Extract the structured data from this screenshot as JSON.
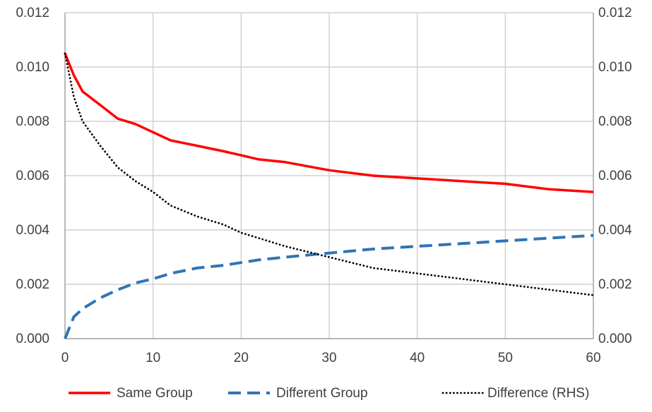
{
  "chart_data": {
    "type": "line",
    "x_ticks": [
      "0",
      "10",
      "20",
      "30",
      "40",
      "50",
      "60"
    ],
    "y_left_ticks": [
      "0.000",
      "0.002",
      "0.004",
      "0.006",
      "0.008",
      "0.010",
      "0.012"
    ],
    "y_right_ticks": [
      "0.000",
      "0.002",
      "0.004",
      "0.006",
      "0.008",
      "0.010",
      "0.012"
    ],
    "xlim": [
      0,
      60
    ],
    "ylim_left": [
      0,
      0.012
    ],
    "ylim_right": [
      0,
      0.012
    ],
    "grid": true,
    "legend_position": "bottom",
    "series": [
      {
        "name": "Same Group",
        "axis": "left",
        "style": "solid",
        "color": "#ff0000",
        "x": [
          0,
          1,
          2,
          4,
          6,
          8,
          10,
          12,
          15,
          18,
          20,
          22,
          25,
          30,
          35,
          40,
          45,
          50,
          55,
          60
        ],
        "y": [
          0.0105,
          0.0097,
          0.0091,
          0.0086,
          0.0081,
          0.0079,
          0.0076,
          0.0073,
          0.0071,
          0.0069,
          0.00675,
          0.0066,
          0.0065,
          0.0062,
          0.006,
          0.0059,
          0.0058,
          0.0057,
          0.0055,
          0.0054
        ]
      },
      {
        "name": "Different Group",
        "axis": "left",
        "style": "dashed",
        "color": "#2e75b6",
        "x": [
          0,
          1,
          2,
          4,
          6,
          8,
          10,
          12,
          15,
          18,
          20,
          22,
          25,
          30,
          35,
          40,
          45,
          50,
          55,
          60
        ],
        "y": [
          0.0,
          0.0008,
          0.0011,
          0.0015,
          0.0018,
          0.00205,
          0.0022,
          0.0024,
          0.0026,
          0.0027,
          0.0028,
          0.0029,
          0.003,
          0.00315,
          0.0033,
          0.0034,
          0.0035,
          0.0036,
          0.0037,
          0.0038
        ]
      },
      {
        "name": "Difference (RHS)",
        "axis": "right",
        "style": "dotted",
        "color": "#000000",
        "x": [
          0,
          1,
          2,
          4,
          6,
          8,
          10,
          12,
          15,
          18,
          20,
          22,
          25,
          30,
          35,
          40,
          45,
          50,
          55,
          60
        ],
        "y": [
          0.0105,
          0.0089,
          0.008,
          0.0071,
          0.0063,
          0.0058,
          0.0054,
          0.0049,
          0.0045,
          0.0042,
          0.0039,
          0.0037,
          0.0034,
          0.003,
          0.0026,
          0.0024,
          0.0022,
          0.002,
          0.0018,
          0.0016
        ]
      }
    ]
  }
}
